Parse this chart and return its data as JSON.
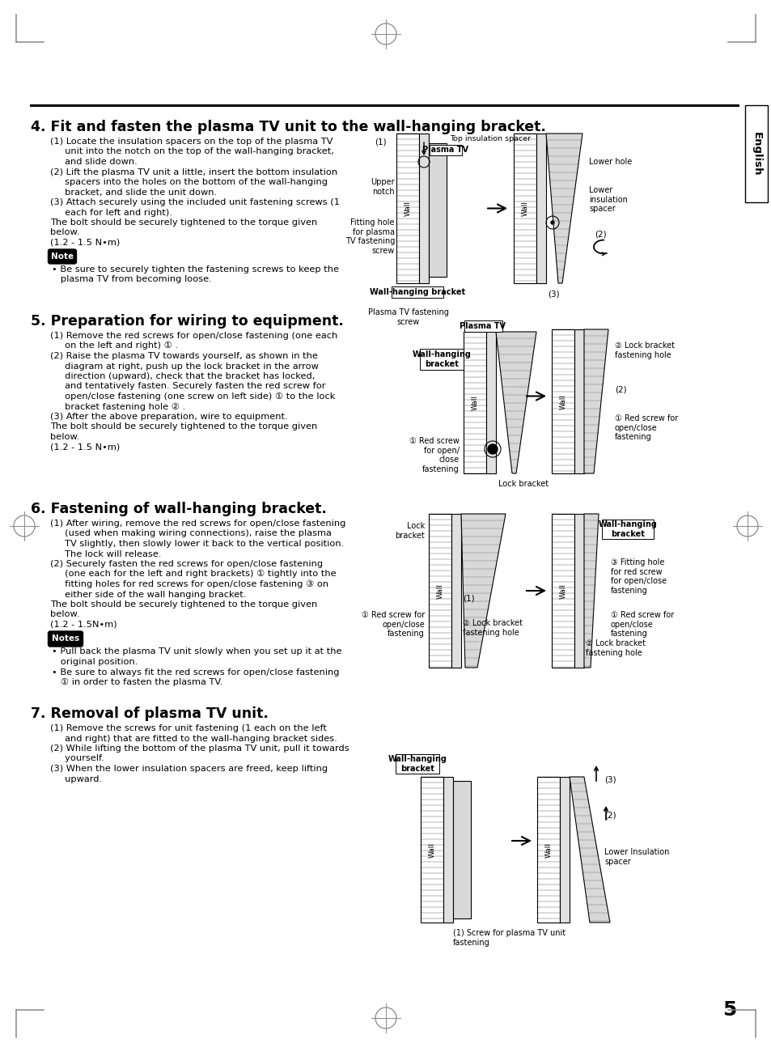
{
  "page_bg": "#ffffff",
  "page_number": "5",
  "section4_title": "4. Fit and fasten the plasma TV unit to the wall-hanging bracket.",
  "section4_body": [
    "(1) Locate the insulation spacers on the top of the plasma TV",
    "     unit into the notch on the top of the wall-hanging bracket,",
    "     and slide down.",
    "(2) Lift the plasma TV unit a little, insert the bottom insulation",
    "     spacers into the holes on the bottom of the wall-hanging",
    "     bracket, and slide the unit down.",
    "(3) Attach securely using the included unit fastening screws (1",
    "     each for left and right).",
    "The bolt should be securely tightened to the torque given",
    "below.",
    "(1.2 - 1.5 N•m)"
  ],
  "note4_label": "Note",
  "note4_body": "• Be sure to securely tighten the fastening screws to keep the\n   plasma TV from becoming loose.",
  "section5_title": "5. Preparation for wiring to equipment.",
  "section5_body": [
    "(1) Remove the red screws for open/close fastening (one each",
    "     on the left and right) ① .",
    "(2) Raise the plasma TV towards yourself, as shown in the",
    "     diagram at right, push up the lock bracket in the arrow",
    "     direction (upward), check that the bracket has locked,",
    "     and tentatively fasten. Securely fasten the red screw for",
    "     open/close fastening (one screw on left side) ① to the lock",
    "     bracket fastening hole ② .",
    "(3) After the above preparation, wire to equipment.",
    "The bolt should be securely tightened to the torque given",
    "below.",
    "(1.2 - 1.5 N•m)"
  ],
  "section6_title": "6. Fastening of wall-hanging bracket.",
  "section6_body": [
    "(1) After wiring, remove the red screws for open/close fastening",
    "     (used when making wiring connections), raise the plasma",
    "     TV slightly, then slowly lower it back to the vertical position.",
    "     The lock will release.",
    "(2) Securely fasten the red screws for open/close fastening",
    "     (one each for the left and right brackets) ① tightly into the",
    "     fitting holes for red screws for open/close fastening ③ on",
    "     either side of the wall hanging bracket.",
    "The bolt should be securely tightened to the torque given",
    "below.",
    "(1.2 - 1.5N•m)"
  ],
  "notes6_label": "Notes",
  "notes6_body": "• Pull back the plasma TV unit slowly when you set up it at the\n   original position.\n• Be sure to always fit the red screws for open/close fastening\n   ① in order to fasten the plasma TV.",
  "section7_title": "7. Removal of plasma TV unit.",
  "section7_body": [
    "(1) Remove the screws for unit fastening (1 each on the left",
    "     and right) that are fitted to the wall-hanging bracket sides.",
    "(2) While lifting the bottom of the plasma TV unit, pull it towards",
    "     yourself.",
    "(3) When the lower insulation spacers are freed, keep lifting",
    "     upward."
  ]
}
